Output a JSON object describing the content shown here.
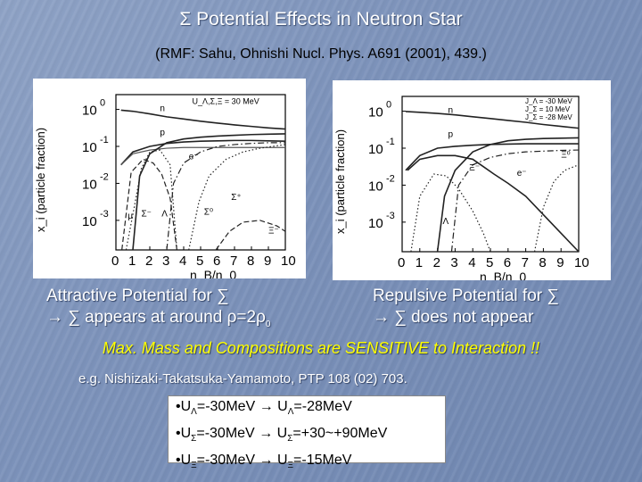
{
  "title": "Σ Potential Effects in Neutron Star",
  "subtitle": "(RMF: Sahu, Ohnishi Nucl. Phys. A691 (2001), 439.)",
  "chart_data": [
    {
      "type": "line",
      "panel": "left",
      "xlabel": "n_B/n_0",
      "ylabel": "x_i (particle fraction)",
      "xticks": [
        "0",
        "1",
        "2",
        "3",
        "4",
        "5",
        "6",
        "7",
        "8",
        "9",
        "10"
      ],
      "xlim": [
        0,
        10
      ],
      "ylim": [
        -3.8,
        0.4
      ],
      "yscale": "log",
      "ytick_labels": [
        {
          "base": "10",
          "exp": "0",
          "v": 0
        },
        {
          "base": "10",
          "exp": "-1",
          "v": -1
        },
        {
          "base": "10",
          "exp": "-2",
          "v": -2
        },
        {
          "base": "10",
          "exp": "-3",
          "v": -3
        }
      ],
      "annotation": "U_Λ,Σ,Ξ = 30 MeV",
      "labels": [
        {
          "text": "n",
          "x": 2.6,
          "y": -0.05
        },
        {
          "text": "p",
          "x": 2.6,
          "y": -0.7
        },
        {
          "text": "e⁻",
          "x": 4.3,
          "y": -1.35
        },
        {
          "text": "μ",
          "x": 0.7,
          "y": -2.95
        },
        {
          "text": "Σ⁻",
          "x": 1.5,
          "y": -2.9
        },
        {
          "text": "Λ",
          "x": 2.7,
          "y": -2.9
        },
        {
          "text": "Σ⁰",
          "x": 5.2,
          "y": -2.85
        },
        {
          "text": "Σ⁺",
          "x": 6.8,
          "y": -2.45
        },
        {
          "text": "Ξ⁻",
          "x": 9.0,
          "y": -3.35
        }
      ],
      "series": [
        {
          "x": [
            0.3,
            1,
            2,
            3,
            4,
            5,
            6,
            7,
            8,
            9,
            10
          ],
          "y": [
            -0.02,
            -0.05,
            -0.12,
            -0.2,
            -0.26,
            -0.32,
            -0.37,
            -0.42,
            -0.46,
            -0.5,
            -0.53
          ],
          "style": "solid"
        },
        {
          "x": [
            0.3,
            1,
            2,
            3,
            4,
            5,
            6,
            7,
            8,
            9,
            10
          ],
          "y": [
            -1.5,
            -1.15,
            -1.0,
            -0.92,
            -0.88,
            -0.86,
            -0.85,
            -0.84,
            -0.84,
            -0.85,
            -0.86
          ],
          "style": "solid"
        },
        {
          "x": [
            0.3,
            1,
            2,
            3,
            4,
            5,
            6,
            7,
            8,
            9,
            10
          ],
          "y": [
            -1.5,
            -1.2,
            -1.1,
            -1.05,
            -1.03,
            -1.03,
            -1.03,
            -1.03,
            -1.03,
            -1.03,
            -1.03
          ],
          "style": "hline"
        },
        {
          "x": [
            0.35,
            0.9,
            1.6,
            2.2,
            2.7,
            3.2,
            3.6
          ],
          "y": [
            -3.8,
            -1.7,
            -1.35,
            -1.45,
            -1.75,
            -2.4,
            -3.8
          ],
          "style": "dashed"
        },
        {
          "x": [
            0.6,
            1.1,
            1.5,
            2.0,
            2.6,
            3.2,
            3.6
          ],
          "y": [
            -3.8,
            -2.6,
            -1.6,
            -1.15,
            -1.1,
            -1.5,
            -3.8
          ],
          "style": "dotted"
        },
        {
          "x": [
            1.0,
            1.4,
            2.0,
            3.0,
            4.0,
            5.0,
            6.0,
            7.0,
            8.0,
            9.0,
            10.0
          ],
          "y": [
            -3.8,
            -1.8,
            -1.2,
            -0.9,
            -0.8,
            -0.75,
            -0.72,
            -0.7,
            -0.68,
            -0.67,
            -0.66
          ],
          "style": "solid"
        },
        {
          "x": [
            3.0,
            3.4,
            4.0,
            5.0,
            6.0,
            7.0,
            8.0,
            9.0,
            10.0
          ],
          "y": [
            -3.8,
            -2.0,
            -1.45,
            -1.15,
            -1.0,
            -0.95,
            -0.92,
            -0.9,
            -0.9
          ],
          "style": "dashdot"
        },
        {
          "x": [
            4.3,
            4.9,
            5.5,
            6.5,
            7.5,
            8.5,
            10.0
          ],
          "y": [
            -3.8,
            -2.5,
            -1.8,
            -1.35,
            -1.15,
            -1.05,
            -0.95
          ],
          "style": "dotted"
        },
        {
          "x": [
            5.9,
            6.7,
            7.5,
            8.5,
            9.5,
            10.0
          ],
          "y": [
            -3.8,
            -3.3,
            -3.05,
            -3.0,
            -3.15,
            -3.3
          ],
          "style": "dashed"
        }
      ]
    },
    {
      "type": "line",
      "panel": "right",
      "xlabel": "n_B/n_0",
      "ylabel": "x_i (particle fraction)",
      "xticks": [
        "0",
        "1",
        "2",
        "3",
        "4",
        "5",
        "6",
        "7",
        "8",
        "9",
        "10"
      ],
      "xlim": [
        0,
        10
      ],
      "ylim": [
        -3.8,
        0.4
      ],
      "yscale": "log",
      "ytick_labels": [
        {
          "base": "10",
          "exp": "0",
          "v": 0
        },
        {
          "base": "10",
          "exp": "-1",
          "v": -1
        },
        {
          "base": "10",
          "exp": "-2",
          "v": -2
        },
        {
          "base": "10",
          "exp": "-3",
          "v": -3
        }
      ],
      "annotation": [
        "J_Λ = -30 MeV",
        "J_Σ = 10 MeV",
        "J_Σ = -28 MeV"
      ],
      "labels": [
        {
          "text": "n",
          "x": 2.6,
          "y": -0.05
        },
        {
          "text": "p",
          "x": 2.6,
          "y": -0.7
        },
        {
          "text": "e⁻",
          "x": 6.5,
          "y": -1.75
        },
        {
          "text": "Ξ⁻",
          "x": 3.8,
          "y": -1.6
        },
        {
          "text": "Ξ⁰",
          "x": 9.0,
          "y": -1.25
        },
        {
          "text": "Λ",
          "x": 2.3,
          "y": -3.05
        }
      ],
      "series": [
        {
          "x": [
            0.2,
            1,
            2,
            3,
            4,
            5,
            6,
            7,
            8,
            9,
            10
          ],
          "y": [
            -0.01,
            -0.03,
            -0.06,
            -0.1,
            -0.15,
            -0.2,
            -0.25,
            -0.3,
            -0.36,
            -0.41,
            -0.46
          ],
          "style": "solid"
        },
        {
          "x": [
            0.2,
            1,
            2,
            3,
            4,
            5,
            6,
            7,
            8,
            9,
            10
          ],
          "y": [
            -1.6,
            -1.2,
            -1.0,
            -0.95,
            -0.92,
            -0.9,
            -0.89,
            -0.88,
            -0.88,
            -0.88,
            -0.88
          ],
          "style": "solid"
        },
        {
          "x": [
            0.3,
            1,
            2,
            3,
            4,
            4.6,
            5.2,
            6,
            7,
            8,
            9,
            10
          ],
          "y": [
            -1.6,
            -1.3,
            -1.2,
            -1.2,
            -1.3,
            -1.5,
            -1.7,
            -1.95,
            -2.3,
            -2.8,
            -3.3,
            -3.8
          ],
          "style": "solid"
        },
        {
          "x": [
            0.5,
            1,
            1.8,
            2.5,
            3.2,
            4.0,
            4.6,
            5.0
          ],
          "y": [
            -3.8,
            -2.3,
            -1.7,
            -1.75,
            -2.1,
            -2.7,
            -3.3,
            -3.8
          ],
          "style": "dotted"
        },
        {
          "x": [
            2.8,
            3.2,
            4.0,
            5.0,
            6.0,
            7.0,
            8.0,
            9.0,
            10.0
          ],
          "y": [
            -3.8,
            -2.0,
            -1.45,
            -1.25,
            -1.15,
            -1.1,
            -1.08,
            -1.06,
            -1.05
          ],
          "style": "dashdot"
        },
        {
          "x": [
            2.0,
            2.4,
            3.0,
            4.0,
            5.0,
            6.0,
            7.0,
            8.0,
            9.0,
            10.0
          ],
          "y": [
            -3.8,
            -2.3,
            -1.6,
            -1.1,
            -0.9,
            -0.8,
            -0.76,
            -0.74,
            -0.73,
            -0.72
          ],
          "style": "solid"
        },
        {
          "x": [
            7.5,
            8.0,
            8.6,
            9.2,
            10.0
          ],
          "y": [
            -3.8,
            -2.6,
            -1.9,
            -1.6,
            -1.45
          ],
          "style": "dotted"
        }
      ]
    }
  ],
  "left_caption": {
    "line1": "Attractive Potential for ∑",
    "line2_text": "→ ∑ appears at around ",
    "rho_expr": "ρ=2ρ",
    "rho_sub": "0"
  },
  "right_caption": {
    "line1": "Repulsive Potential for ∑",
    "line2": "→ ∑ does not appear"
  },
  "sensitive_text": "Max. Mass and Compositions are SENSITIVE to Interaction !!",
  "reference": "e.g. Nishizaki-Takatsuka-Yamamoto, PTP 108 (02) 703.",
  "potentials": [
    {
      "bullet": "•",
      "u": "U",
      "sub1": "Λ",
      "from": "=-30MeV",
      "arrow": "→",
      "sub2": "Λ",
      "to": "=-28MeV"
    },
    {
      "bullet": "•",
      "u": "U",
      "sub1": "Σ",
      "from": "=-30MeV",
      "arrow": "→",
      "sub2": "Σ",
      "to": "=+30~+90MeV"
    },
    {
      "bullet": "•",
      "u": "U",
      "sub1": "Ξ",
      "from": "=-30MeV",
      "arrow": "→",
      "sub2": "Ξ",
      "to": "=-15MeV"
    }
  ]
}
